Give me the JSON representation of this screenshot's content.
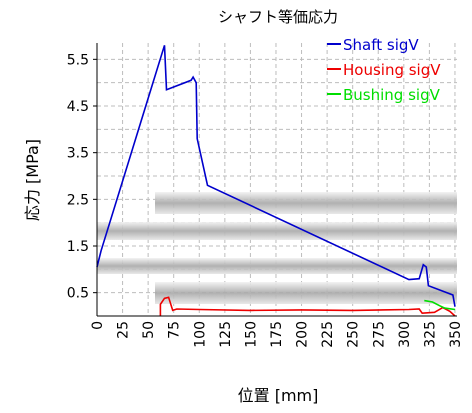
{
  "chart_data": {
    "type": "line",
    "title": "シャフト等価応力",
    "xlabel": "位置 [mm]",
    "ylabel": "応力 [MPa]",
    "xlim": [
      0,
      352
    ],
    "ylim": [
      0,
      5.85
    ],
    "x_ticks": [
      "0",
      "25",
      "50",
      "75",
      "100",
      "125",
      "150",
      "175",
      "200",
      "225",
      "250",
      "275",
      "300",
      "325",
      "350"
    ],
    "y_ticks": [
      "0.5",
      "1.5",
      "2.5",
      "3.5",
      "4.5",
      "5.5"
    ],
    "y_tick_values": [
      0.5,
      1.5,
      2.5,
      3.5,
      4.5,
      5.5
    ],
    "grid": true,
    "legend_position": "top-right",
    "series": [
      {
        "name": "Shaft sigV",
        "color": "#0000cc",
        "points": [
          [
            0,
            1.05
          ],
          [
            4,
            1.4
          ],
          [
            66,
            5.8
          ],
          [
            68,
            4.85
          ],
          [
            92,
            5.05
          ],
          [
            94,
            5.12
          ],
          [
            97,
            5.0
          ],
          [
            98,
            3.8
          ],
          [
            108,
            2.8
          ],
          [
            305,
            0.78
          ],
          [
            315,
            0.8
          ],
          [
            319,
            1.1
          ],
          [
            322,
            1.05
          ],
          [
            324,
            0.65
          ],
          [
            348,
            0.45
          ],
          [
            350,
            0.2
          ]
        ]
      },
      {
        "name": "Housing sigV",
        "color": "#ee0000",
        "points": [
          [
            62,
            0
          ],
          [
            62,
            0.25
          ],
          [
            66,
            0.38
          ],
          [
            70,
            0.4
          ],
          [
            74,
            0.12
          ],
          [
            78,
            0.15
          ],
          [
            100,
            0.14
          ],
          [
            150,
            0.12
          ],
          [
            200,
            0.13
          ],
          [
            250,
            0.12
          ],
          [
            305,
            0.14
          ],
          [
            315,
            0.15
          ],
          [
            318,
            0.06
          ],
          [
            330,
            0.08
          ],
          [
            338,
            0.18
          ],
          [
            345,
            0.1
          ],
          [
            350,
            0.0
          ]
        ]
      },
      {
        "name": "Bushing sigV",
        "color": "#00dd00",
        "points": [
          [
            320,
            0.33
          ],
          [
            328,
            0.3
          ],
          [
            335,
            0.22
          ],
          [
            340,
            0.17
          ],
          [
            350,
            0.14
          ]
        ]
      }
    ]
  }
}
